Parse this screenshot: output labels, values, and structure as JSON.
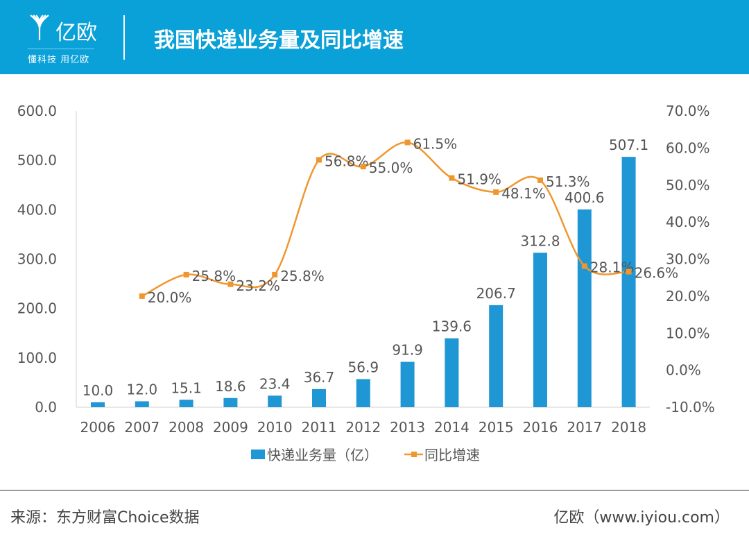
{
  "header": {
    "logo_text": "亿欧",
    "logo_slogan": "懂科技 用亿欧",
    "title": "我国快递业务量及同比增速"
  },
  "colors": {
    "header": "#0aa0d8",
    "bar": "#1f97d4",
    "line": "#f0962e",
    "text": "#555555"
  },
  "chart_data": {
    "type": "bar+line",
    "title": "我国快递业务量及同比增速",
    "categories": [
      "2006",
      "2007",
      "2008",
      "2009",
      "2010",
      "2011",
      "2012",
      "2013",
      "2014",
      "2015",
      "2016",
      "2017",
      "2018"
    ],
    "series": [
      {
        "name": "快递业务量（亿）",
        "type": "bar",
        "axis": "left",
        "values": [
          10.0,
          12.0,
          15.1,
          18.6,
          23.4,
          36.7,
          56.9,
          91.9,
          139.6,
          206.7,
          312.8,
          400.6,
          507.1
        ],
        "labels": [
          "10.0",
          "12.0",
          "15.1",
          "18.6",
          "23.4",
          "36.7",
          "56.9",
          "91.9",
          "139.6",
          "206.7",
          "312.8",
          "400.6",
          "507.1"
        ]
      },
      {
        "name": "同比增速",
        "type": "line",
        "axis": "right",
        "values": [
          null,
          20.0,
          25.8,
          23.2,
          25.8,
          56.8,
          55.0,
          61.5,
          51.9,
          48.1,
          51.3,
          28.1,
          26.6
        ],
        "labels": [
          "",
          "20.0%",
          "25.8%",
          "23.2%",
          "25.8%",
          "56.8%",
          "55.0%",
          "61.5%",
          "51.9%",
          "48.1%",
          "51.3%",
          "28.1%",
          "26.6%"
        ]
      }
    ],
    "y_left": {
      "range": [
        0,
        600
      ],
      "ticks": [
        "0.0",
        "100.0",
        "200.0",
        "300.0",
        "400.0",
        "500.0",
        "600.0"
      ]
    },
    "y_right": {
      "range": [
        -10,
        70
      ],
      "ticks": [
        "-10.0%",
        "0.0%",
        "10.0%",
        "20.0%",
        "30.0%",
        "40.0%",
        "50.0%",
        "60.0%",
        "70.0%"
      ]
    },
    "legend_position": "bottom",
    "grid": false
  },
  "footer": {
    "source": "来源：东方财富Choice数据",
    "brand": "亿欧（www.iyiou.com）"
  }
}
